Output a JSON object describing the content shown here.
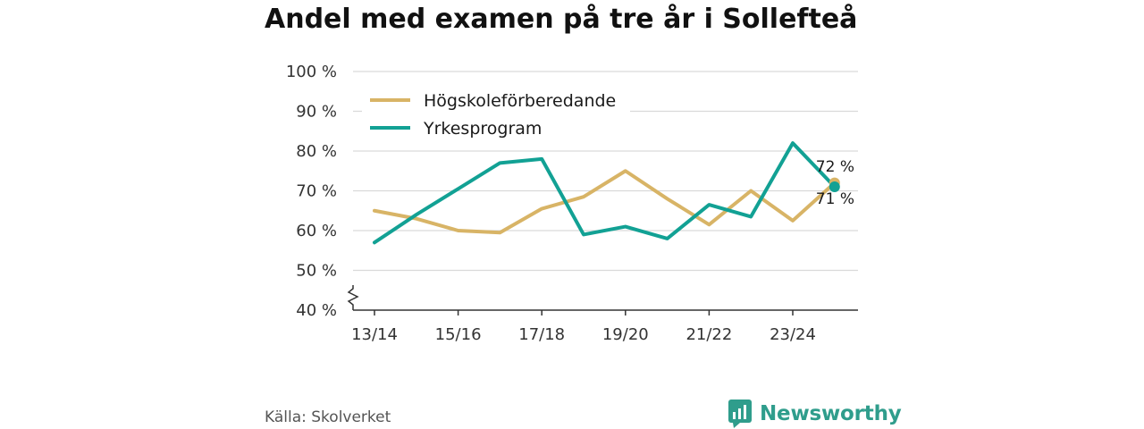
{
  "title": "Andel med examen på tre år i Sollefteå",
  "source": "Källa: Skolverket",
  "brand": {
    "name": "Newsworthy",
    "logo_icon": "newsworthy-logo-icon"
  },
  "colors": {
    "hogskole": "#d8b466",
    "yrkes": "#12a194",
    "grid": "#d9d9d9",
    "axis": "#333333",
    "brand": "#2f9d8c"
  },
  "chart_data": {
    "type": "line",
    "title": "Andel med examen på tre år i Sollefteå",
    "xlabel": "",
    "ylabel": "",
    "ylim": [
      40,
      100
    ],
    "y_ticks": [
      "100 %",
      "90 %",
      "80 %",
      "70 %",
      "60 %",
      "50 %",
      "40 %"
    ],
    "y_tick_values": [
      100,
      90,
      80,
      70,
      60,
      50,
      40
    ],
    "x_tick_labels": [
      "13/14",
      "15/16",
      "17/18",
      "19/20",
      "21/22",
      "23/24"
    ],
    "x": [
      "13/14",
      "14/15",
      "15/16",
      "16/17",
      "17/18",
      "18/19",
      "19/20",
      "20/21",
      "21/22",
      "22/23",
      "23/24",
      "24/25"
    ],
    "grid": true,
    "legend_position": "top-left",
    "series": [
      {
        "name": "Högskoleförberedande",
        "color": "#d8b466",
        "values": [
          65,
          63,
          60,
          59.5,
          65.5,
          68.5,
          75,
          68,
          61.5,
          70,
          62.5,
          72
        ],
        "end_label": "72 %"
      },
      {
        "name": "Yrkesprogram",
        "color": "#12a194",
        "values": [
          57,
          64,
          70.5,
          77,
          78,
          59,
          61,
          58,
          66.5,
          63.5,
          82,
          71
        ],
        "end_label": "71 %"
      }
    ]
  }
}
